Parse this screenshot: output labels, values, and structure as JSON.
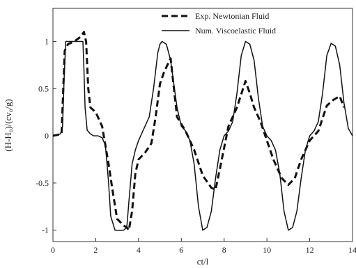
{
  "chart_data": {
    "type": "line",
    "xlabel": "ct/l",
    "ylabel": "(H-H₀)/(cv₀/g)",
    "xlim": [
      0,
      14
    ],
    "ylim": [
      -1.12,
      1.35
    ],
    "xticks": [
      0,
      2,
      4,
      6,
      8,
      10,
      12,
      14
    ],
    "xtick_labels": [
      "0",
      "2",
      "4",
      "6",
      "8",
      "10",
      "12",
      "14"
    ],
    "yticks": [
      -1,
      -0.5,
      0,
      0.5,
      1
    ],
    "ytick_labels": [
      "-1",
      "-0.5",
      "0",
      "0.5",
      "1"
    ],
    "grid": false,
    "legend_position": "top-right",
    "series": [
      {
        "name": "Exp. Newtonian Fluid",
        "style": "dashed",
        "color": "#111111",
        "x": [
          0,
          0.4,
          0.45,
          0.55,
          0.7,
          1.0,
          1.3,
          1.45,
          1.55,
          1.65,
          1.75,
          2.0,
          2.3,
          2.6,
          2.8,
          3.0,
          3.3,
          3.45,
          3.55,
          3.7,
          3.85,
          4.0,
          4.3,
          4.6,
          4.8,
          5.0,
          5.2,
          5.5,
          5.8,
          6.2,
          6.6,
          7.0,
          7.4,
          7.6,
          7.8,
          8.2,
          8.6,
          9.0,
          9.2,
          9.4,
          9.7,
          10.0,
          10.3,
          10.7,
          11.0,
          11.3,
          11.6,
          12.0,
          12.4,
          12.8,
          13.1,
          13.4,
          13.6
        ],
        "y": [
          0,
          0.02,
          0.3,
          0.9,
          0.97,
          1.0,
          1.05,
          1.1,
          1.0,
          0.5,
          0.3,
          0.25,
          0.1,
          -0.3,
          -0.6,
          -0.88,
          -0.95,
          -0.97,
          -1.0,
          -0.8,
          -0.4,
          -0.25,
          -0.18,
          -0.08,
          0.2,
          0.55,
          0.68,
          0.82,
          0.2,
          0.05,
          -0.15,
          -0.42,
          -0.55,
          -0.57,
          -0.35,
          0.1,
          0.3,
          0.58,
          0.45,
          0.3,
          0.15,
          -0.05,
          -0.25,
          -0.45,
          -0.52,
          -0.45,
          -0.25,
          -0.05,
          0.05,
          0.32,
          0.38,
          0.42,
          0.3
        ]
      },
      {
        "name": "Num. Viscoelastic Fluid",
        "style": "solid",
        "color": "#111111",
        "x": [
          0,
          0.35,
          0.45,
          0.52,
          0.6,
          1.2,
          1.4,
          1.45,
          1.5,
          1.6,
          1.75,
          1.9,
          2.1,
          2.3,
          2.45,
          2.6,
          2.7,
          2.9,
          3.3,
          3.45,
          3.55,
          3.7,
          3.85,
          4.0,
          4.2,
          4.5,
          4.7,
          4.9,
          5.0,
          5.1,
          5.3,
          5.5,
          5.8,
          6.0,
          6.2,
          6.4,
          6.6,
          6.8,
          7.0,
          7.2,
          7.4,
          7.6,
          7.8,
          8.0,
          8.2,
          8.4,
          8.6,
          8.8,
          9.0,
          9.2,
          9.4,
          9.6,
          9.8,
          10.0,
          10.2,
          10.4,
          10.6,
          10.8,
          11.0,
          11.2,
          11.4,
          11.6,
          11.8,
          12.0,
          12.2,
          12.4,
          12.6,
          12.8,
          13.0,
          13.2,
          13.4,
          13.6,
          13.8,
          14.0
        ],
        "y": [
          0,
          0.02,
          0.1,
          0.6,
          1.0,
          1.0,
          1.0,
          0.7,
          0.3,
          0.06,
          0.02,
          0.0,
          0.0,
          -0.02,
          -0.1,
          -0.5,
          -0.85,
          -1.0,
          -1.0,
          -0.97,
          -0.7,
          -0.3,
          -0.15,
          -0.05,
          0.05,
          0.2,
          0.5,
          0.88,
          0.97,
          1.0,
          0.97,
          0.8,
          0.3,
          0.1,
          0.05,
          -0.05,
          -0.3,
          -0.75,
          -1.0,
          -0.97,
          -0.8,
          -0.45,
          -0.15,
          0.0,
          0.05,
          0.15,
          0.45,
          0.85,
          1.0,
          0.97,
          0.8,
          0.4,
          0.1,
          0.0,
          -0.05,
          -0.15,
          -0.4,
          -0.8,
          -1.0,
          -0.97,
          -0.8,
          -0.45,
          -0.15,
          0.0,
          0.05,
          0.15,
          0.45,
          0.85,
          0.98,
          0.95,
          0.75,
          0.35,
          0.08,
          0.0
        ]
      }
    ]
  }
}
